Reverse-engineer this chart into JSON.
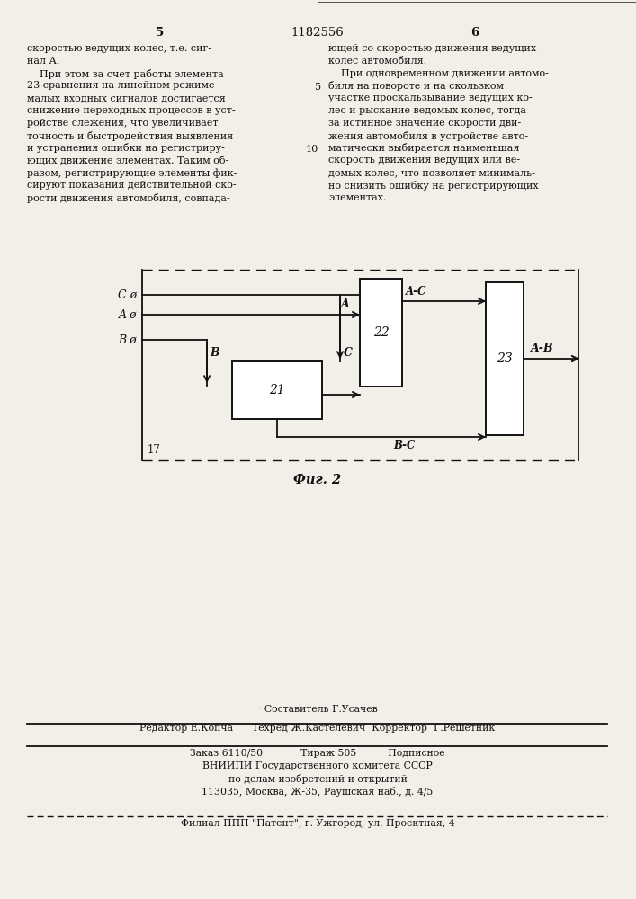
{
  "page_number_left": "5",
  "patent_number": "1182556",
  "page_number_right": "6",
  "left_text_lines": [
    "скоростью ведущих колес, т.е. сиг-",
    "нал А.",
    "    При этом за счет работы элемента",
    "23 сравнения на линейном режиме",
    "малых входных сигналов достигается",
    "снижение переходных процессов в уст-",
    "ройстве слежения, что увеличивает",
    "точность и быстродействия выявления",
    "и устранения ошибки на регистриру-",
    "ющих движение элементах. Таким об-",
    "разом, регистрирующие элементы фик-",
    "сируют показания действительной ско-",
    "рости движения автомобиля, совпада-"
  ],
  "right_text_lines": [
    "ющей со скоростью движения ведущих",
    "колес автомобиля.",
    "    При одновременном движении автомо-",
    "биля на повороте и на скользком",
    "участке проскальзывание ведущих ко-",
    "лес и рыскание ведомых колес, тогда",
    "за истинное значение скорости дви-",
    "жения автомобиля в устройстве авто-",
    "матически выбирается наименьшая",
    "скорость движения ведущих или ве-",
    "домых колес, что позволяет минималь-",
    "но снизить ошибку на регистрирующих",
    "элементах."
  ],
  "line_num_5_row": 4,
  "line_num_10_row": 9,
  "fig_caption": "Фиг. 2",
  "fig_label_17": "17",
  "block_21_label": "21",
  "block_22_label": "22",
  "block_23_label": "23",
  "label_AC": "A-C",
  "label_BC": "B-C",
  "label_AB": "A-B",
  "footer_staff": "· Составитель Г.Усачев",
  "footer_editor": "Редактор Е.Копча      Техред Ж.Кастелевич  Корректор  Г.Решетник",
  "footer_order": "Заказ 6110/50            Тираж 505          Подписное",
  "footer_org1": "ВНИИПИ Государственного комитета СССР",
  "footer_org2": "по делам изобретений и открытий",
  "footer_org3": "113035, Москва, Ж-35, Раушская наб., д. 4/5",
  "footer_branch": "Филиал ППП \"Патент\", г. Ужгород, ул. Проектная, 4",
  "bg_color": "#f2efe8",
  "text_color": "#111111",
  "line_color": "#111111"
}
